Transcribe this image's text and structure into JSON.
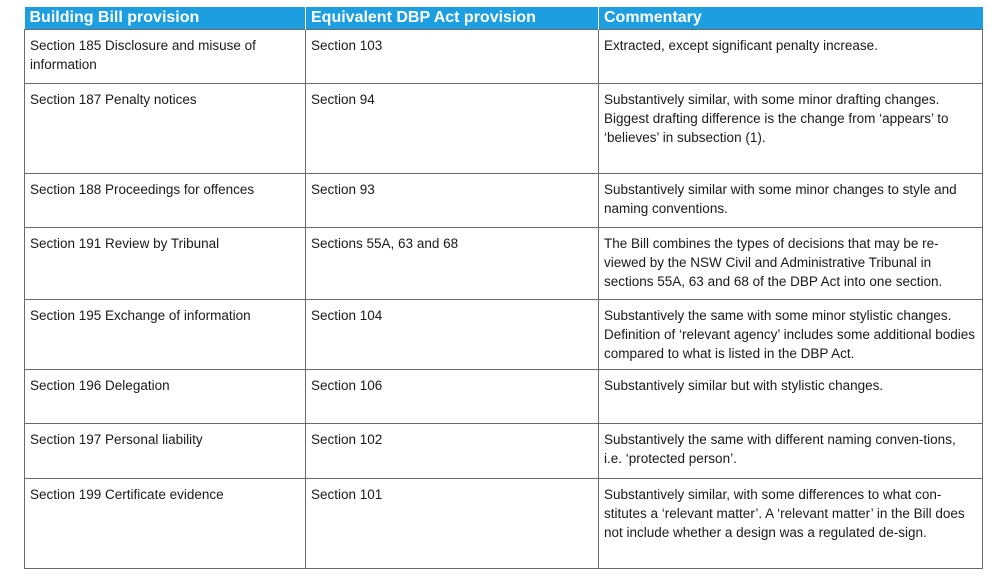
{
  "table": {
    "headers": [
      "Building Bill provision",
      "Equivalent DBP Act provision",
      "Commentary"
    ],
    "rows": [
      {
        "bill": "Section 185 Disclosure and misuse of information",
        "dbp": "Section 103",
        "commentary": "Extracted, except significant penalty increase."
      },
      {
        "bill": "Section 187 Penalty notices",
        "dbp": "Section 94",
        "commentary": "Substantively similar, with some minor drafting changes. Biggest drafting difference is the change from ‘appears’ to ‘believes’ in subsection (1)."
      },
      {
        "bill": "Section 188 Proceedings for offences",
        "dbp": "Section 93",
        "commentary": "Substantively similar with some minor changes to style and naming conventions."
      },
      {
        "bill": "Section 191 Review by Tribunal",
        "dbp": "Sections 55A, 63 and 68",
        "commentary": "The Bill combines the types of decisions that may be re-viewed by the NSW Civil and Administrative Tribunal in sections 55A, 63 and 68 of the DBP Act into one section."
      },
      {
        "bill": "Section 195 Exchange of information",
        "dbp": "Section 104",
        "commentary": "Substantively the same with some minor stylistic changes. Definition of ‘relevant agency’ includes some additional bodies compared to what is listed in the DBP Act."
      },
      {
        "bill": "Section 196 Delegation",
        "dbp": "Section 106",
        "commentary": "Substantively similar but with stylistic changes."
      },
      {
        "bill": "Section 197 Personal liability",
        "dbp": "Section 102",
        "commentary": "Substantively the same with different naming conven-tions, i.e. ‘protected person’."
      },
      {
        "bill": "Section 199 Certificate evidence",
        "dbp": "Section 101",
        "commentary": "Substantively similar, with some differences to what con-stitutes a ‘relevant matter’. A ‘relevant matter’ in the Bill does not include whether a design was a regulated de-sign."
      }
    ]
  }
}
